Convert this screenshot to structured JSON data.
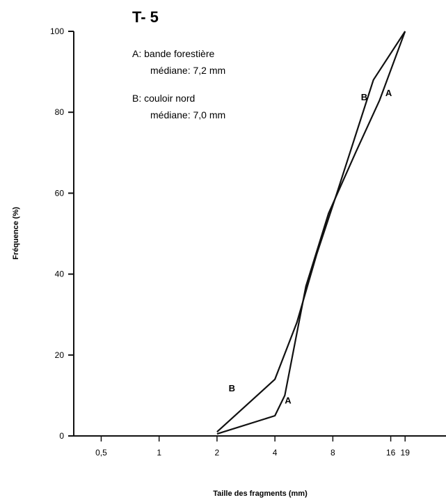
{
  "chart_data": {
    "type": "line",
    "title": "T- 5",
    "xlabel": "Taille des fragments (mm)",
    "ylabel": "Fréquence  (%)",
    "x_scale": "log",
    "x_ticks": [
      0.5,
      1,
      2,
      4,
      8,
      16,
      19
    ],
    "x_tick_labels": [
      "0,5",
      "1",
      "2",
      "4",
      "8",
      "16",
      "19"
    ],
    "xlim": [
      0.36,
      31
    ],
    "ylim": [
      0,
      100
    ],
    "y_ticks": [
      0,
      20,
      40,
      60,
      80,
      100
    ],
    "y_tick_labels": [
      "0",
      "20",
      "40",
      "60",
      "80",
      "100"
    ],
    "legend": [
      {
        "line1": "A: bande forestière",
        "line2": "médiane: 7,2 mm"
      },
      {
        "line1": "B: couloir nord",
        "line2": "médiane: 7,0 mm"
      }
    ],
    "legend_position": "top-left",
    "series": [
      {
        "name": "A",
        "x": [
          2,
          4,
          4.5,
          5.8,
          7.6,
          10.5,
          14,
          19
        ],
        "y": [
          0.5,
          5,
          10,
          37,
          55,
          70,
          83,
          100
        ]
      },
      {
        "name": "B",
        "x": [
          2,
          4,
          5.2,
          6.6,
          8.4,
          13,
          19
        ],
        "y": [
          1,
          14,
          28,
          45,
          60,
          88,
          100
        ]
      }
    ],
    "series_labels": [
      {
        "text": "A",
        "x": 4.5,
        "y": 8
      },
      {
        "text": "A",
        "x": 15,
        "y": 84
      },
      {
        "text": "B",
        "x": 2.3,
        "y": 11
      },
      {
        "text": "B",
        "x": 11.2,
        "y": 83
      }
    ]
  }
}
